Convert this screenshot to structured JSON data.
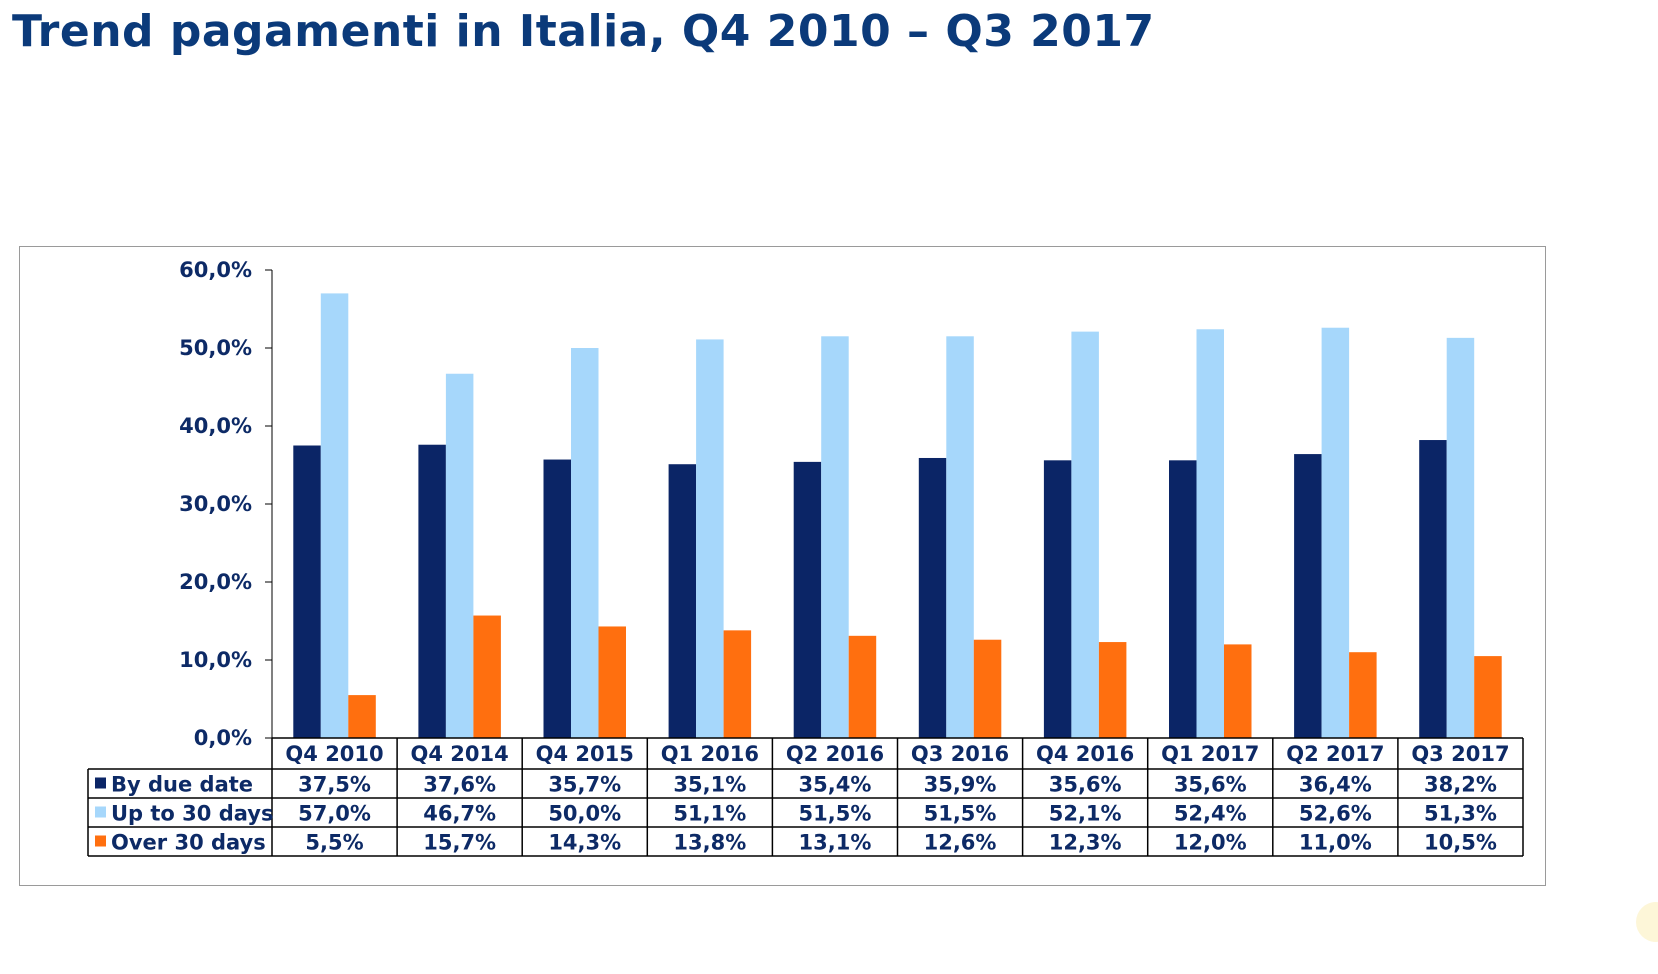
{
  "title": "Trend pagamenti in Italia, Q4 2010 – Q3 2017",
  "chart_data": {
    "type": "bar",
    "title": "Trend pagamenti in Italia, Q4 2010 – Q3 2017",
    "categories": [
      "Q4 2010",
      "Q4 2014",
      "Q4 2015",
      "Q1 2016",
      "Q2 2016",
      "Q3 2016",
      "Q4 2016",
      "Q1 2017",
      "Q2 2017",
      "Q3 2017"
    ],
    "series": [
      {
        "name": "By due date",
        "color": "#0b2566",
        "values": [
          37.5,
          37.6,
          35.7,
          35.1,
          35.4,
          35.9,
          35.6,
          35.6,
          36.4,
          38.2
        ],
        "labels": [
          "37,5%",
          "37,6%",
          "35,7%",
          "35,1%",
          "35,4%",
          "35,9%",
          "35,6%",
          "35,6%",
          "36,4%",
          "38,2%"
        ]
      },
      {
        "name": "Up to 30 days",
        "color": "#a6d7fb",
        "values": [
          57.0,
          46.7,
          50.0,
          51.1,
          51.5,
          51.5,
          52.1,
          52.4,
          52.6,
          51.3
        ],
        "labels": [
          "57,0%",
          "46,7%",
          "50,0%",
          "51,1%",
          "51,5%",
          "51,5%",
          "52,1%",
          "52,4%",
          "52,6%",
          "51,3%"
        ]
      },
      {
        "name": "Over 30 days",
        "color": "#ff6f0f",
        "values": [
          5.5,
          15.7,
          14.3,
          13.8,
          13.1,
          12.6,
          12.3,
          12.0,
          11.0,
          10.5
        ],
        "labels": [
          "5,5%",
          "15,7%",
          "14,3%",
          "13,8%",
          "13,1%",
          "12,6%",
          "12,3%",
          "12,0%",
          "11,0%",
          "10,5%"
        ]
      }
    ],
    "ylim": [
      0,
      60
    ],
    "yticks": [
      0,
      10,
      20,
      30,
      40,
      50,
      60
    ],
    "ytick_labels": [
      "0,0%",
      "10,0%",
      "20,0%",
      "30,0%",
      "40,0%",
      "50,0%",
      "60,0%"
    ],
    "xlabel": "",
    "ylabel": "",
    "grid": false,
    "legend": "data-table"
  }
}
